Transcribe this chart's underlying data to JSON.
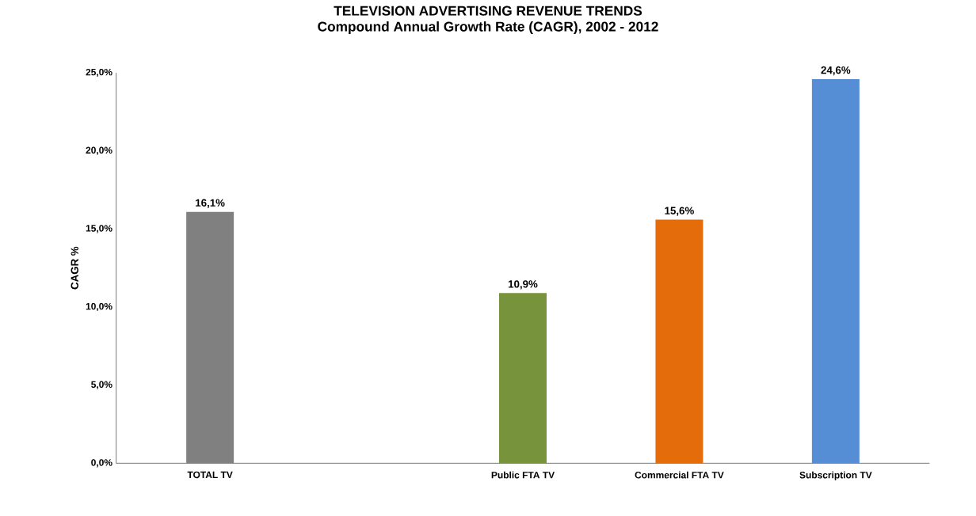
{
  "chart_data": {
    "type": "bar",
    "title": "TELEVISION ADVERTISING REVENUE TRENDS",
    "subtitle": "Compound Annual Growth Rate (CAGR), 2002 - 2012",
    "ylabel": "CAGR %",
    "categories": [
      "TOTAL TV",
      null,
      "Public FTA TV",
      "Commercial FTA TV",
      "Subscription TV"
    ],
    "values": [
      16.1,
      null,
      10.9,
      15.6,
      24.6
    ],
    "colors": [
      "#808080",
      "#808080",
      "#77933c",
      "#e46c0a",
      "#558ed5"
    ],
    "value_labels": [
      "16,1%",
      null,
      "10,9%",
      "15,6%",
      "24,6%"
    ],
    "ylim": [
      0,
      25
    ],
    "yticks": [
      {
        "value": 0,
        "label": "0,0%"
      },
      {
        "value": 5,
        "label": "5,0%"
      },
      {
        "value": 10,
        "label": "10,0%"
      },
      {
        "value": 15,
        "label": "15,0%"
      },
      {
        "value": 20,
        "label": "20,0%"
      },
      {
        "value": 25,
        "label": "25,0%"
      }
    ],
    "grid": false
  }
}
